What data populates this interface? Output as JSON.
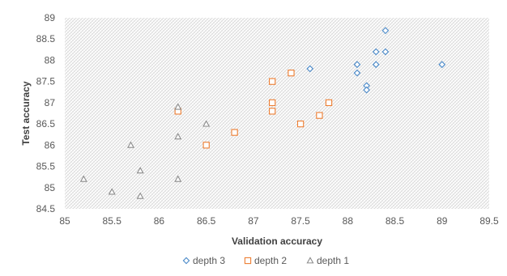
{
  "chart_data": {
    "type": "scatter",
    "title": "",
    "xlabel": "Validation accuracy",
    "ylabel": "Test accuracy",
    "xlim": [
      85,
      89.5
    ],
    "ylim": [
      84.5,
      89
    ],
    "x_ticks": [
      "85",
      "85.5",
      "86",
      "86.5",
      "87",
      "87.5",
      "88",
      "88.5",
      "89",
      "89.5"
    ],
    "y_ticks": [
      "84.5",
      "85",
      "85.5",
      "86",
      "86.5",
      "87",
      "87.5",
      "88",
      "88.5",
      "89"
    ],
    "grid": false,
    "background": "patterned",
    "legend_position": "bottom",
    "series": [
      {
        "name": "depth 3",
        "marker": "diamond",
        "color": "#4a89c8",
        "points": [
          {
            "x": 87.6,
            "y": 87.8
          },
          {
            "x": 88.1,
            "y": 87.9
          },
          {
            "x": 88.1,
            "y": 87.7
          },
          {
            "x": 88.2,
            "y": 87.4
          },
          {
            "x": 88.2,
            "y": 87.3
          },
          {
            "x": 88.3,
            "y": 88.2
          },
          {
            "x": 88.3,
            "y": 87.9
          },
          {
            "x": 88.4,
            "y": 88.7
          },
          {
            "x": 88.4,
            "y": 88.2
          },
          {
            "x": 89.0,
            "y": 87.9
          }
        ]
      },
      {
        "name": "depth 2",
        "marker": "square",
        "color": "#ed7d31",
        "points": [
          {
            "x": 86.2,
            "y": 86.8
          },
          {
            "x": 86.5,
            "y": 86.0
          },
          {
            "x": 86.8,
            "y": 86.3
          },
          {
            "x": 87.2,
            "y": 87.5
          },
          {
            "x": 87.2,
            "y": 87.0
          },
          {
            "x": 87.2,
            "y": 86.8
          },
          {
            "x": 87.4,
            "y": 87.7
          },
          {
            "x": 87.5,
            "y": 86.5
          },
          {
            "x": 87.7,
            "y": 86.7
          },
          {
            "x": 87.8,
            "y": 87.0
          }
        ]
      },
      {
        "name": "depth 1",
        "marker": "triangle",
        "color": "#8c8c8c",
        "points": [
          {
            "x": 85.2,
            "y": 85.2
          },
          {
            "x": 85.5,
            "y": 84.9
          },
          {
            "x": 85.7,
            "y": 86.0
          },
          {
            "x": 85.8,
            "y": 85.4
          },
          {
            "x": 85.8,
            "y": 84.8
          },
          {
            "x": 86.2,
            "y": 86.9
          },
          {
            "x": 86.2,
            "y": 86.2
          },
          {
            "x": 86.2,
            "y": 85.2
          },
          {
            "x": 86.5,
            "y": 86.5
          }
        ]
      }
    ]
  }
}
